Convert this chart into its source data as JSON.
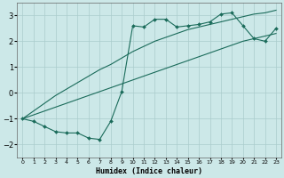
{
  "xlabel": "Humidex (Indice chaleur)",
  "x": [
    0,
    1,
    2,
    3,
    4,
    5,
    6,
    7,
    8,
    9,
    10,
    11,
    12,
    13,
    14,
    15,
    16,
    17,
    18,
    19,
    20,
    21,
    22,
    23
  ],
  "line_main": [
    -1.0,
    -1.1,
    -1.3,
    -1.5,
    -1.55,
    -1.55,
    -1.75,
    -1.8,
    -1.1,
    0.05,
    2.6,
    2.55,
    2.85,
    2.85,
    2.55,
    2.6,
    2.65,
    2.75,
    3.05,
    3.1,
    2.6,
    2.1,
    2.0,
    2.5
  ],
  "line_low": [
    -1.0,
    -0.85,
    -0.7,
    -0.55,
    -0.4,
    -0.25,
    -0.1,
    0.05,
    0.2,
    0.35,
    0.5,
    0.65,
    0.8,
    0.95,
    1.1,
    1.25,
    1.4,
    1.55,
    1.7,
    1.85,
    2.0,
    2.1,
    2.2,
    2.3
  ],
  "line_high": [
    -1.0,
    -0.7,
    -0.4,
    -0.1,
    0.15,
    0.4,
    0.65,
    0.9,
    1.1,
    1.35,
    1.6,
    1.8,
    2.0,
    2.15,
    2.3,
    2.45,
    2.55,
    2.65,
    2.75,
    2.85,
    2.95,
    3.05,
    3.1,
    3.2
  ],
  "line_color": "#1a6b5a",
  "bg_color": "#cce8e8",
  "grid_color": "#aacccc",
  "ylim": [
    -2.5,
    3.5
  ],
  "yticks": [
    -2,
    -1,
    0,
    1,
    2,
    3
  ],
  "xlim": [
    -0.5,
    23.5
  ]
}
